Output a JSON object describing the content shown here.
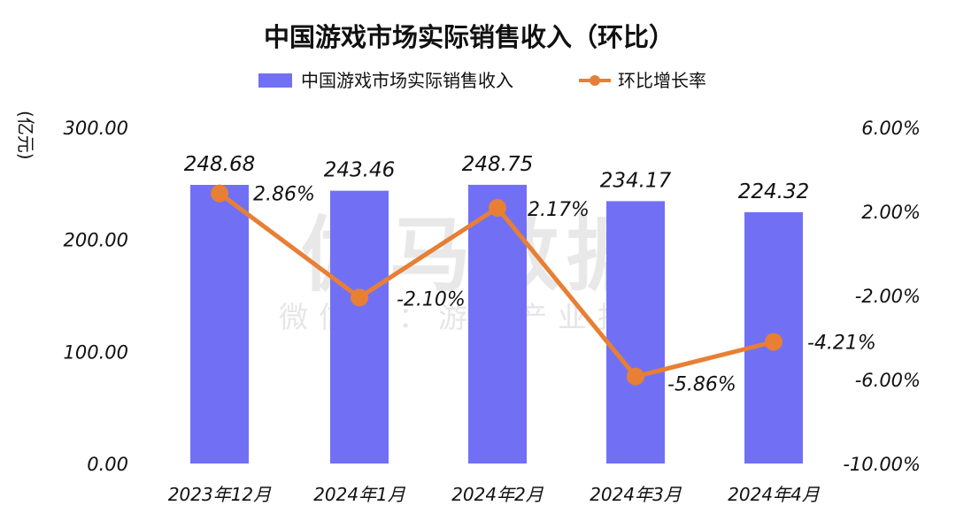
{
  "chart_data": {
    "type": "bar+line",
    "title": "中国游戏市场实际销售收入（环比）",
    "categories": [
      "2023年12月",
      "2024年1月",
      "2024年2月",
      "2024年3月",
      "2024年4月"
    ],
    "series": [
      {
        "name": "中国游戏市场实际销售收入",
        "type": "bar",
        "axis": "left",
        "values": [
          248.68,
          243.46,
          248.75,
          234.17,
          224.32
        ],
        "labels": [
          "248.68",
          "243.46",
          "248.75",
          "234.17",
          "224.32"
        ]
      },
      {
        "name": "环比增长率",
        "type": "line",
        "axis": "right",
        "values": [
          2.86,
          -2.1,
          2.17,
          -5.86,
          -4.21
        ],
        "labels": [
          "2.86%",
          "-2.10%",
          "2.17%",
          "-5.86%",
          "-4.21%"
        ]
      }
    ],
    "y_left": {
      "label": "(亿元)",
      "min": 0,
      "max": 300,
      "ticks": [
        "0.00",
        "100.00",
        "200.00",
        "300.00"
      ],
      "tick_values": [
        0,
        100,
        200,
        300
      ]
    },
    "y_right": {
      "min": -10,
      "max": 6,
      "ticks": [
        "-10.00%",
        "-6.00%",
        "-2.00%",
        "2.00%",
        "6.00%"
      ],
      "tick_values": [
        -10,
        -6,
        -2,
        2,
        6
      ]
    },
    "legend_position": "top-center",
    "watermark": [
      "伽马数据",
      "微信号：游戏产业报告"
    ]
  },
  "colors": {
    "bar": "#7170f5",
    "line": "#e77f35",
    "text": "#111111"
  }
}
